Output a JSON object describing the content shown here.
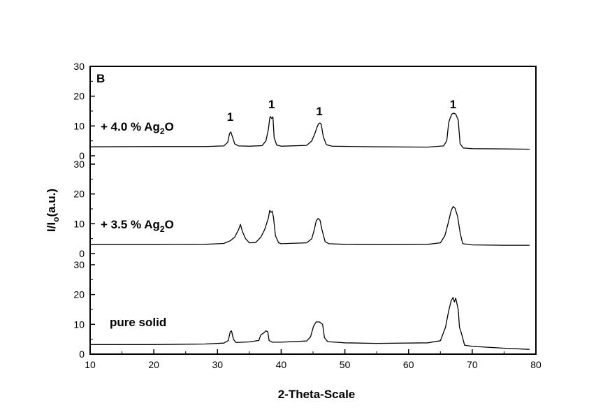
{
  "chart_data": {
    "type": "line",
    "panel_label": "B",
    "xlabel": "2-Theta-Scale",
    "ylabel": "I/I",
    "ylabel_sub": "o",
    "ylabel_suffix": "(a.u.)",
    "xlim": [
      10,
      80
    ],
    "x_ticks": [
      10,
      20,
      30,
      40,
      50,
      60,
      70,
      80
    ],
    "grid": false,
    "legend": "none",
    "panels": [
      {
        "name_parts": [
          "+ 4.0 % Ag",
          "2",
          "O"
        ],
        "ylim": [
          0,
          30
        ],
        "y_ticks": [
          0,
          10,
          20,
          30
        ],
        "peak_label": "1",
        "peak_label_x": [
          32.0,
          38.5,
          46.0,
          67.0
        ],
        "points": [
          [
            10,
            3.0
          ],
          [
            20,
            3.1
          ],
          [
            28,
            3.1
          ],
          [
            31,
            3.3
          ],
          [
            31.6,
            4.5
          ],
          [
            31.9,
            7.5
          ],
          [
            32.1,
            8.0
          ],
          [
            32.4,
            6.0
          ],
          [
            32.7,
            4.0
          ],
          [
            33.3,
            3.3
          ],
          [
            35,
            3.2
          ],
          [
            37,
            3.4
          ],
          [
            37.6,
            5.0
          ],
          [
            38.0,
            9.0
          ],
          [
            38.2,
            12.5
          ],
          [
            38.3,
            13.2
          ],
          [
            38.5,
            12.5
          ],
          [
            38.7,
            13.0
          ],
          [
            38.9,
            6.0
          ],
          [
            39.3,
            3.6
          ],
          [
            40,
            3.2
          ],
          [
            44,
            3.5
          ],
          [
            44.8,
            5.0
          ],
          [
            45.3,
            7.5
          ],
          [
            45.7,
            10.0
          ],
          [
            45.9,
            10.8
          ],
          [
            46.1,
            11.0
          ],
          [
            46.3,
            10.5
          ],
          [
            46.6,
            6.5
          ],
          [
            47.1,
            3.7
          ],
          [
            48,
            3.2
          ],
          [
            55,
            3.0
          ],
          [
            63,
            2.9
          ],
          [
            65.5,
            3.3
          ],
          [
            66.0,
            5.0
          ],
          [
            66.3,
            11.0
          ],
          [
            66.5,
            12.5
          ],
          [
            66.8,
            14.0
          ],
          [
            67.1,
            14.3
          ],
          [
            67.4,
            14.0
          ],
          [
            67.8,
            12.0
          ],
          [
            68.1,
            4.0
          ],
          [
            68.6,
            2.6
          ],
          [
            70,
            2.4
          ],
          [
            75,
            2.3
          ],
          [
            79,
            2.2
          ]
        ]
      },
      {
        "name_parts": [
          "+ 3.5 % Ag",
          "2",
          "O"
        ],
        "ylim": [
          0,
          30
        ],
        "y_ticks": [
          0,
          10,
          20,
          30
        ],
        "points": [
          [
            10,
            3.0
          ],
          [
            20,
            3.0
          ],
          [
            28,
            3.1
          ],
          [
            31,
            3.4
          ],
          [
            32,
            4.3
          ],
          [
            32.7,
            5.5
          ],
          [
            33.3,
            8.0
          ],
          [
            33.6,
            9.8
          ],
          [
            33.9,
            7.5
          ],
          [
            34.4,
            5.0
          ],
          [
            35.0,
            3.6
          ],
          [
            36,
            3.7
          ],
          [
            36.8,
            5.5
          ],
          [
            37.4,
            8.0
          ],
          [
            38.0,
            12.0
          ],
          [
            38.2,
            14.5
          ],
          [
            38.4,
            13.8
          ],
          [
            38.6,
            14.2
          ],
          [
            38.8,
            12.0
          ],
          [
            39.1,
            6.0
          ],
          [
            39.6,
            3.6
          ],
          [
            40,
            3.3
          ],
          [
            44,
            3.6
          ],
          [
            44.8,
            5.0
          ],
          [
            45.2,
            8.0
          ],
          [
            45.5,
            11.0
          ],
          [
            45.8,
            11.8
          ],
          [
            46.1,
            11.2
          ],
          [
            46.4,
            8.0
          ],
          [
            46.9,
            4.0
          ],
          [
            47.5,
            3.3
          ],
          [
            50,
            3.1
          ],
          [
            55,
            3.0
          ],
          [
            63,
            3.1
          ],
          [
            65,
            3.6
          ],
          [
            65.7,
            6.0
          ],
          [
            66.2,
            10.0
          ],
          [
            66.7,
            14.5
          ],
          [
            67.0,
            15.8
          ],
          [
            67.3,
            15.2
          ],
          [
            67.7,
            12.5
          ],
          [
            68.1,
            7.0
          ],
          [
            68.5,
            3.3
          ],
          [
            70,
            2.9
          ],
          [
            75,
            2.8
          ],
          [
            79,
            2.8
          ]
        ]
      },
      {
        "name_parts": [
          "pure solid"
        ],
        "ylim": [
          0,
          30
        ],
        "y_ticks": [
          0,
          10,
          20,
          30
        ],
        "points": [
          [
            10,
            3.2
          ],
          [
            20,
            3.2
          ],
          [
            28,
            3.4
          ],
          [
            31,
            3.7
          ],
          [
            31.7,
            4.6
          ],
          [
            32.0,
            7.5
          ],
          [
            32.2,
            7.8
          ],
          [
            32.5,
            5.0
          ],
          [
            32.9,
            3.9
          ],
          [
            35,
            4.1
          ],
          [
            36.5,
            4.6
          ],
          [
            36.8,
            6.5
          ],
          [
            37.2,
            7.0
          ],
          [
            37.6,
            7.8
          ],
          [
            37.9,
            7.5
          ],
          [
            38.1,
            4.6
          ],
          [
            38.6,
            4.0
          ],
          [
            40,
            4.0
          ],
          [
            44,
            4.4
          ],
          [
            44.6,
            5.8
          ],
          [
            45.1,
            9.5
          ],
          [
            45.5,
            10.8
          ],
          [
            46.0,
            10.8
          ],
          [
            46.5,
            10.0
          ],
          [
            46.8,
            5.5
          ],
          [
            47.3,
            4.2
          ],
          [
            50,
            3.8
          ],
          [
            55,
            3.6
          ],
          [
            63,
            3.8
          ],
          [
            65,
            4.5
          ],
          [
            65.8,
            9.0
          ],
          [
            66.3,
            14.5
          ],
          [
            66.7,
            18.0
          ],
          [
            67.0,
            19.0
          ],
          [
            67.2,
            17.5
          ],
          [
            67.4,
            18.8
          ],
          [
            67.8,
            15.0
          ],
          [
            68.0,
            9.0
          ],
          [
            68.3,
            7.0
          ],
          [
            68.8,
            3.0
          ],
          [
            70,
            2.6
          ],
          [
            75,
            2.0
          ],
          [
            79,
            1.6
          ]
        ]
      }
    ]
  }
}
